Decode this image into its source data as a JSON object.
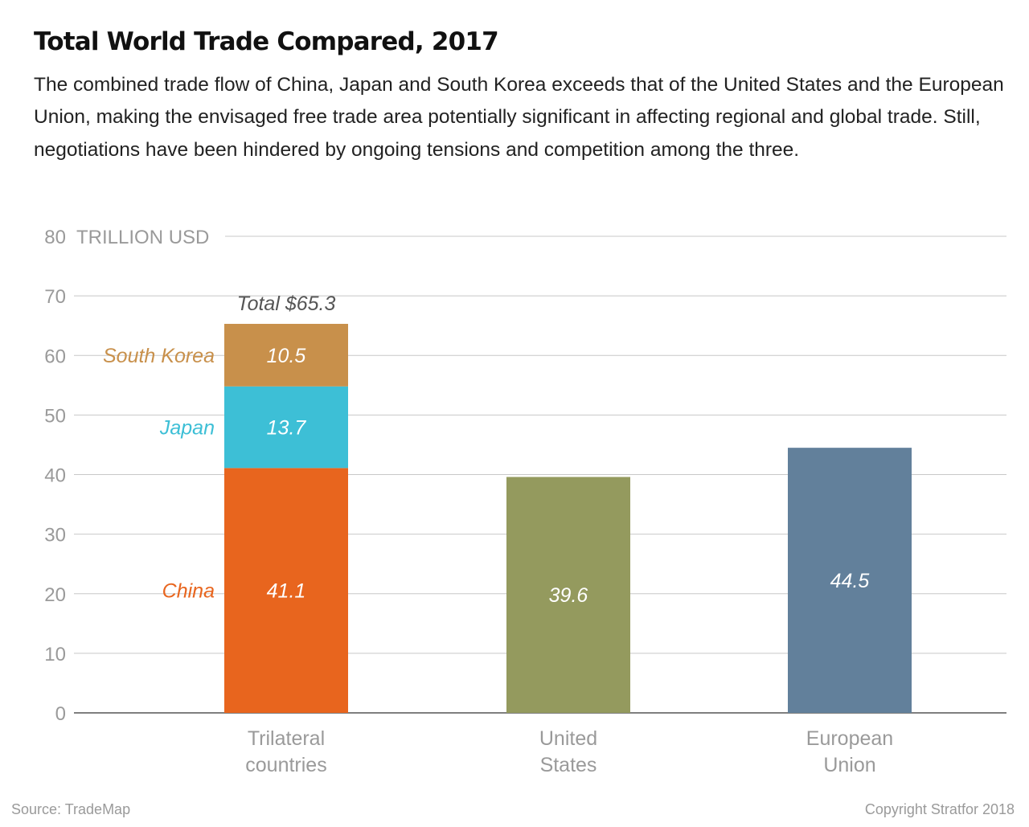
{
  "title": "Total World Trade Compared, 2017",
  "subtitle": "The combined trade flow of China, Japan and South Korea exceeds that of the United States and the European Union, making the envisaged free trade area potentially significant in affecting regional and global trade. Still, negotiations have been hindered by ongoing tensions and competition among the three.",
  "source": "Source: TradeMap",
  "copyright": "Copyright Stratfor 2018",
  "chart_data": {
    "type": "bar",
    "stacked": true,
    "unit_label": "TRILLION USD",
    "ylim": [
      0,
      80
    ],
    "yticks": [
      "0",
      "10",
      "20",
      "30",
      "40",
      "50",
      "60",
      "70",
      "80"
    ],
    "grid": true,
    "legend": "inline labels beside segments",
    "categories": [
      {
        "lines": [
          "Trilateral",
          "countries"
        ]
      },
      {
        "lines": [
          "United",
          "States"
        ]
      },
      {
        "lines": [
          "European",
          "Union"
        ]
      }
    ],
    "bars": [
      {
        "total_label": "Total $65.3",
        "segments": [
          {
            "name": "China",
            "value": 41.1,
            "label": "41.1",
            "color": "#e8651e"
          },
          {
            "name": "Japan",
            "value": 13.7,
            "label": "13.7",
            "color": "#3dbfd6"
          },
          {
            "name": "South Korea",
            "value": 10.5,
            "label": "10.5",
            "color": "#c8904b"
          }
        ]
      },
      {
        "segments": [
          {
            "value": 39.6,
            "label": "39.6",
            "color": "#949a5e"
          }
        ]
      },
      {
        "segments": [
          {
            "value": 44.5,
            "label": "44.5",
            "color": "#62809b"
          }
        ]
      }
    ]
  }
}
